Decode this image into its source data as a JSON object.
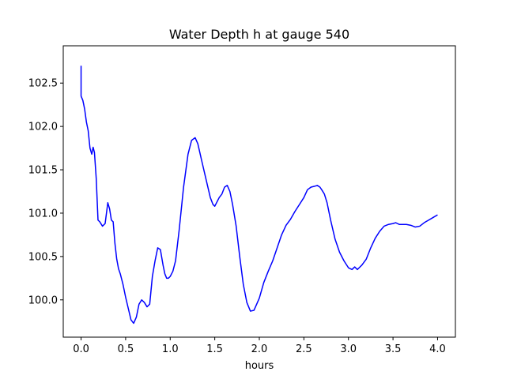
{
  "chart_data": {
    "type": "line",
    "title": "Water Depth h at gauge 540",
    "xlabel": "hours",
    "ylabel": "",
    "xlim": [
      -0.2,
      4.2
    ],
    "ylim": [
      99.57,
      102.93
    ],
    "grid": false,
    "legend": "none",
    "xticks": [
      0.0,
      0.5,
      1.0,
      1.5,
      2.0,
      2.5,
      3.0,
      3.5,
      4.0
    ],
    "xtick_labels": [
      "0.0",
      "0.5",
      "1.0",
      "1.5",
      "2.0",
      "2.5",
      "3.0",
      "3.5",
      "4.0"
    ],
    "yticks": [
      100.0,
      100.5,
      101.0,
      101.5,
      102.0,
      102.5
    ],
    "ytick_labels": [
      "100.0",
      "100.5",
      "101.0",
      "101.5",
      "102.0",
      "102.5"
    ],
    "series": [
      {
        "color": "#0000ff",
        "x": [
          0.0,
          0.0,
          0.02,
          0.04,
          0.06,
          0.08,
          0.1,
          0.12,
          0.135,
          0.15,
          0.17,
          0.19,
          0.21,
          0.24,
          0.27,
          0.3,
          0.32,
          0.34,
          0.36,
          0.38,
          0.4,
          0.42,
          0.44,
          0.47,
          0.5,
          0.53,
          0.56,
          0.59,
          0.62,
          0.65,
          0.68,
          0.71,
          0.74,
          0.77,
          0.8,
          0.83,
          0.86,
          0.89,
          0.92,
          0.94,
          0.96,
          0.98,
          1.0,
          1.03,
          1.06,
          1.1,
          1.15,
          1.2,
          1.24,
          1.28,
          1.31,
          1.35,
          1.4,
          1.45,
          1.48,
          1.5,
          1.52,
          1.55,
          1.58,
          1.61,
          1.64,
          1.67,
          1.7,
          1.74,
          1.78,
          1.82,
          1.86,
          1.9,
          1.94,
          1.97,
          2.0,
          2.05,
          2.1,
          2.15,
          2.2,
          2.25,
          2.3,
          2.35,
          2.4,
          2.45,
          2.5,
          2.54,
          2.58,
          2.62,
          2.65,
          2.68,
          2.7,
          2.73,
          2.76,
          2.8,
          2.85,
          2.9,
          2.95,
          3.0,
          3.04,
          3.07,
          3.1,
          3.12,
          3.15,
          3.2,
          3.25,
          3.3,
          3.35,
          3.4,
          3.45,
          3.5,
          3.53,
          3.55,
          3.57,
          3.6,
          3.65,
          3.7,
          3.75,
          3.8,
          3.85,
          3.9,
          3.95,
          4.0
        ],
        "y": [
          102.7,
          102.35,
          102.3,
          102.2,
          102.05,
          101.95,
          101.75,
          101.68,
          101.76,
          101.7,
          101.4,
          100.92,
          100.9,
          100.85,
          100.88,
          101.12,
          101.05,
          100.92,
          100.9,
          100.65,
          100.47,
          100.36,
          100.3,
          100.18,
          100.03,
          99.9,
          99.77,
          99.73,
          99.8,
          99.95,
          100.0,
          99.97,
          99.92,
          99.95,
          100.27,
          100.45,
          100.6,
          100.58,
          100.4,
          100.3,
          100.25,
          100.25,
          100.27,
          100.33,
          100.45,
          100.8,
          101.3,
          101.68,
          101.84,
          101.87,
          101.8,
          101.62,
          101.4,
          101.18,
          101.1,
          101.08,
          101.12,
          101.18,
          101.22,
          101.3,
          101.32,
          101.25,
          101.1,
          100.85,
          100.5,
          100.18,
          99.97,
          99.87,
          99.88,
          99.95,
          100.02,
          100.2,
          100.33,
          100.45,
          100.6,
          100.75,
          100.86,
          100.93,
          101.02,
          101.1,
          101.18,
          101.27,
          101.3,
          101.31,
          101.32,
          101.3,
          101.27,
          101.22,
          101.12,
          100.92,
          100.7,
          100.55,
          100.45,
          100.37,
          100.35,
          100.38,
          100.35,
          100.37,
          100.4,
          100.47,
          100.6,
          100.71,
          100.79,
          100.85,
          100.87,
          100.88,
          100.89,
          100.88,
          100.87,
          100.87,
          100.87,
          100.86,
          100.84,
          100.85,
          100.89,
          100.92,
          100.95,
          100.98
        ]
      }
    ]
  }
}
